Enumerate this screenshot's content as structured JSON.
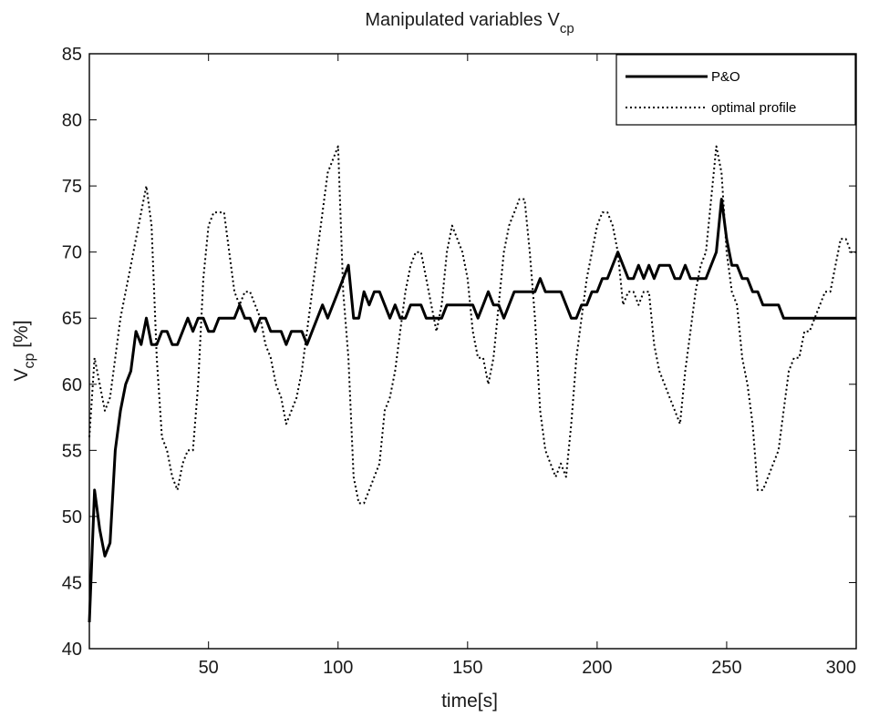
{
  "chart_data": {
    "type": "line",
    "title_main": "Manipulated variables V",
    "title_sub": "cp",
    "xlabel": "time[s]",
    "ylabel_main": "V",
    "ylabel_sub": "cp",
    "ylabel_rest": " [%]",
    "xlim": [
      4,
      300
    ],
    "ylim": [
      40,
      85
    ],
    "xticks": [
      50,
      100,
      150,
      200,
      250,
      300
    ],
    "yticks": [
      40,
      45,
      50,
      55,
      60,
      65,
      70,
      75,
      80,
      85
    ],
    "grid": false,
    "legend_position": "top-right",
    "series": [
      {
        "name": "P&O",
        "style": "solid",
        "color": "#000000",
        "x": [
          4,
          6,
          8,
          10,
          12,
          14,
          16,
          18,
          20,
          22,
          24,
          26,
          28,
          30,
          32,
          34,
          36,
          38,
          40,
          42,
          44,
          46,
          48,
          50,
          52,
          54,
          56,
          58,
          60,
          62,
          64,
          66,
          68,
          70,
          72,
          74,
          76,
          78,
          80,
          82,
          84,
          86,
          88,
          90,
          92,
          94,
          96,
          98,
          100,
          102,
          104,
          106,
          108,
          110,
          112,
          114,
          116,
          118,
          120,
          122,
          124,
          126,
          128,
          130,
          132,
          134,
          136,
          138,
          140,
          142,
          144,
          146,
          148,
          150,
          152,
          154,
          156,
          158,
          160,
          162,
          164,
          166,
          168,
          170,
          172,
          174,
          176,
          178,
          180,
          182,
          184,
          186,
          188,
          190,
          192,
          194,
          196,
          198,
          200,
          202,
          204,
          206,
          208,
          210,
          212,
          214,
          216,
          218,
          220,
          222,
          224,
          226,
          228,
          230,
          232,
          234,
          236,
          238,
          240,
          242,
          244,
          246,
          248,
          250,
          252,
          254,
          256,
          258,
          260,
          262,
          264,
          266,
          268,
          270,
          272,
          274,
          276,
          278,
          280,
          282,
          284,
          286,
          288,
          290,
          292,
          294,
          296,
          298,
          300
        ],
        "y": [
          42,
          52,
          49,
          47,
          48,
          55,
          58,
          60,
          61,
          64,
          63,
          65,
          63,
          63,
          64,
          64,
          63,
          63,
          64,
          65,
          64,
          65,
          65,
          64,
          64,
          65,
          65,
          65,
          65,
          66,
          65,
          65,
          64,
          65,
          65,
          64,
          64,
          64,
          63,
          64,
          64,
          64,
          63,
          64,
          65,
          66,
          65,
          66,
          67,
          68,
          69,
          65,
          65,
          67,
          66,
          67,
          67,
          66,
          65,
          66,
          65,
          65,
          66,
          66,
          66,
          65,
          65,
          65,
          65,
          66,
          66,
          66,
          66,
          66,
          66,
          65,
          66,
          67,
          66,
          66,
          65,
          66,
          67,
          67,
          67,
          67,
          67,
          68,
          67,
          67,
          67,
          67,
          66,
          65,
          65,
          66,
          66,
          67,
          67,
          68,
          68,
          69,
          70,
          69,
          68,
          68,
          69,
          68,
          69,
          68,
          69,
          69,
          69,
          68,
          68,
          69,
          68,
          68,
          68,
          68,
          69,
          70,
          74,
          71,
          69,
          69,
          68,
          68,
          67,
          67,
          66,
          66,
          66,
          66,
          65,
          65,
          65,
          65,
          65,
          65,
          65,
          65,
          65,
          65,
          65,
          65,
          65,
          65,
          65
        ]
      },
      {
        "name": "optimal profile",
        "style": "dotted",
        "color": "#000000",
        "x": [
          4,
          6,
          8,
          10,
          12,
          14,
          16,
          18,
          20,
          22,
          24,
          26,
          28,
          30,
          32,
          34,
          36,
          38,
          40,
          42,
          44,
          46,
          48,
          50,
          52,
          54,
          56,
          58,
          60,
          62,
          64,
          66,
          68,
          70,
          72,
          74,
          76,
          78,
          80,
          82,
          84,
          86,
          88,
          90,
          92,
          94,
          96,
          98,
          100,
          102,
          104,
          106,
          108,
          110,
          112,
          114,
          116,
          118,
          120,
          122,
          124,
          126,
          128,
          130,
          132,
          134,
          136,
          138,
          140,
          142,
          144,
          146,
          148,
          150,
          152,
          154,
          156,
          158,
          160,
          162,
          164,
          166,
          168,
          170,
          172,
          174,
          176,
          178,
          180,
          182,
          184,
          186,
          188,
          190,
          192,
          194,
          196,
          198,
          200,
          202,
          204,
          206,
          208,
          210,
          212,
          214,
          216,
          218,
          220,
          222,
          224,
          226,
          228,
          230,
          232,
          234,
          236,
          238,
          240,
          242,
          244,
          246,
          248,
          250,
          252,
          254,
          256,
          258,
          260,
          262,
          264,
          266,
          268,
          270,
          272,
          274,
          276,
          278,
          280,
          282,
          284,
          286,
          288,
          290,
          292,
          294,
          296,
          298,
          300
        ],
        "y": [
          56,
          62,
          60,
          58,
          59,
          62,
          65,
          67,
          69,
          71,
          73,
          75,
          72,
          62,
          56,
          55,
          53,
          52,
          54,
          55,
          55,
          60,
          68,
          72,
          73,
          73,
          73,
          70,
          67,
          66,
          67,
          67,
          66,
          65,
          63,
          62,
          60,
          59,
          57,
          58,
          59,
          61,
          64,
          67,
          70,
          73,
          76,
          77,
          78,
          67,
          62,
          53,
          51,
          51,
          52,
          53,
          54,
          58,
          59,
          61,
          64,
          67,
          69,
          70,
          70,
          68,
          66,
          64,
          66,
          70,
          72,
          71,
          70,
          68,
          64,
          62,
          62,
          60,
          62,
          66,
          70,
          72,
          73,
          74,
          74,
          70,
          65,
          58,
          55,
          54,
          53,
          54,
          53,
          57,
          62,
          65,
          68,
          70,
          72,
          73,
          73,
          72,
          70,
          66,
          67,
          67,
          66,
          67,
          67,
          63,
          61,
          60,
          59,
          58,
          57,
          61,
          64,
          67,
          69,
          70,
          74,
          78,
          76,
          70,
          67,
          66,
          62,
          60,
          57,
          52,
          52,
          53,
          54,
          55,
          58,
          61,
          62,
          62,
          64,
          64,
          65,
          66,
          67,
          67,
          69,
          71,
          71,
          70,
          70
        ]
      }
    ]
  }
}
